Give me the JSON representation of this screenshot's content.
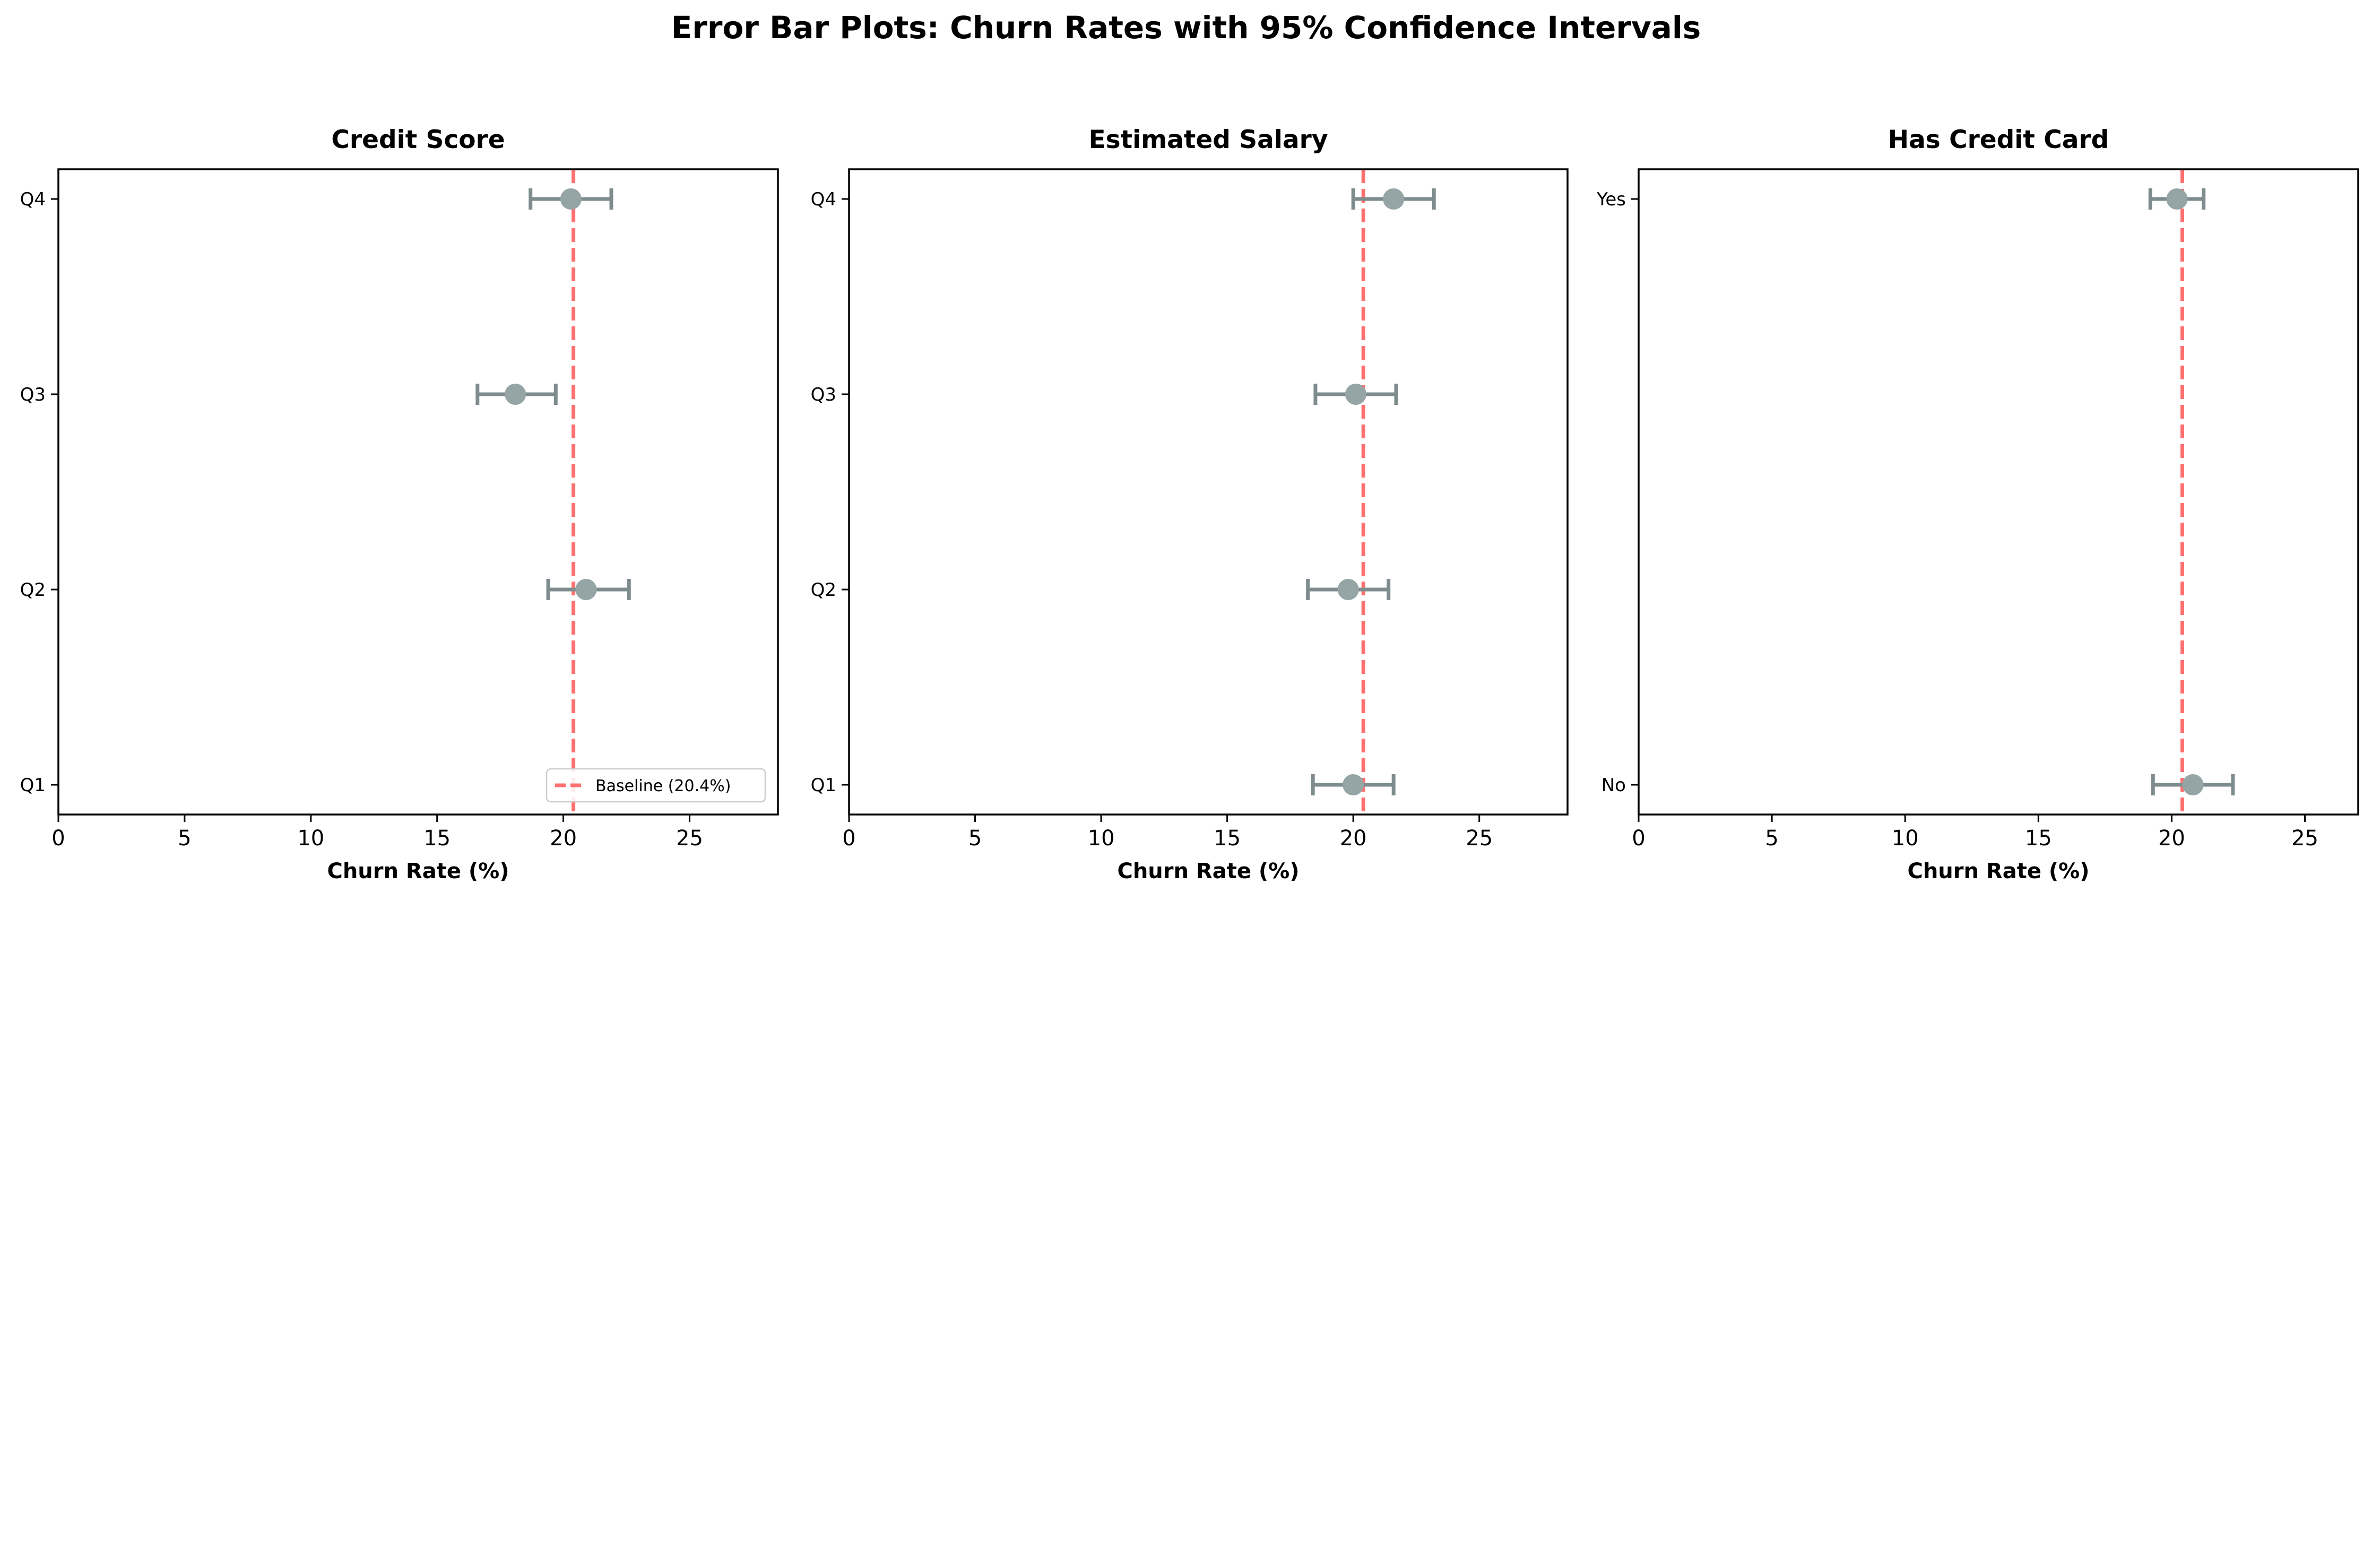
{
  "title": "Error Bar Plots: Churn Rates with 95% Confidence Intervals",
  "colors": {
    "point": "#95a5a6",
    "errorbar": "#7f8c8d",
    "baseline": "#ff7070"
  },
  "chart_data": [
    {
      "type": "errorbar",
      "title": "Credit Score",
      "xlabel": "Churn Rate (%)",
      "xlim": [
        0,
        28.5
      ],
      "xticks": [
        0,
        5,
        10,
        15,
        20,
        25
      ],
      "categories": [
        "Q1",
        "Q2",
        "Q3",
        "Q4"
      ],
      "values": [
        null,
        20.9,
        18.1,
        20.3
      ],
      "ci_lower": [
        null,
        19.4,
        16.6,
        18.7
      ],
      "ci_upper": [
        null,
        22.6,
        19.7,
        21.9
      ],
      "baseline": 20.4,
      "legend": {
        "label": "Baseline (20.4%)",
        "placement": "lower-right"
      },
      "grid": false
    },
    {
      "type": "errorbar",
      "title": "Estimated Salary",
      "xlabel": "Churn Rate (%)",
      "xlim": [
        0,
        28.5
      ],
      "xticks": [
        0,
        5,
        10,
        15,
        20,
        25
      ],
      "categories": [
        "Q1",
        "Q2",
        "Q3",
        "Q4"
      ],
      "values": [
        20.0,
        19.8,
        20.1,
        21.6
      ],
      "ci_lower": [
        18.4,
        18.2,
        18.5,
        20.0
      ],
      "ci_upper": [
        21.6,
        21.4,
        21.7,
        23.2
      ],
      "baseline": 20.4,
      "grid": false
    },
    {
      "type": "errorbar",
      "title": "Has Credit Card",
      "xlabel": "Churn Rate (%)",
      "xlim": [
        0,
        27
      ],
      "xticks": [
        0,
        5,
        10,
        15,
        20,
        25
      ],
      "categories": [
        "No",
        "Yes"
      ],
      "values": [
        20.8,
        20.2
      ],
      "ci_lower": [
        19.3,
        19.2
      ],
      "ci_upper": [
        22.3,
        21.2
      ],
      "baseline": 20.4,
      "grid": false
    }
  ]
}
